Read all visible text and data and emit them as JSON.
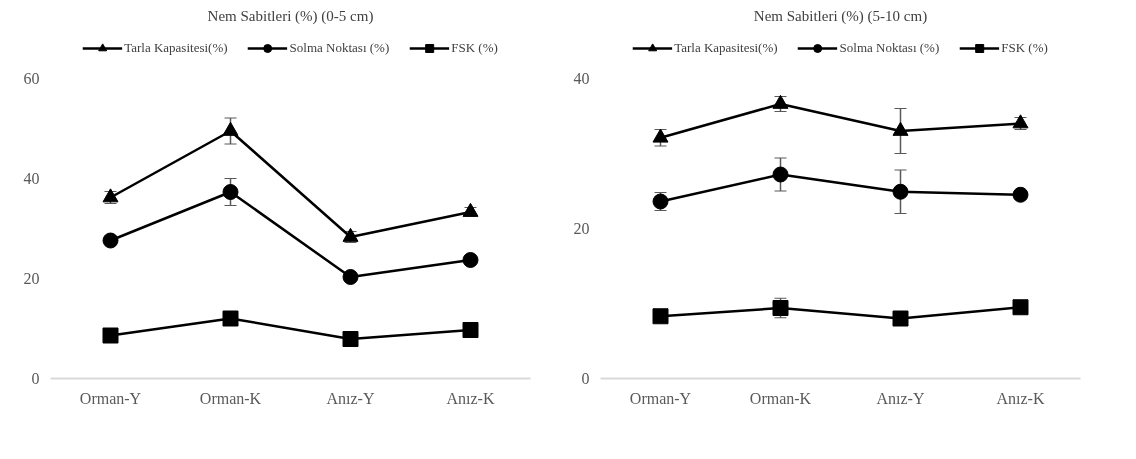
{
  "chart_data": [
    {
      "type": "line",
      "title": "Nem Sabitleri (%) (0-5 cm)",
      "categories": [
        "Orman-Y",
        "Orman-K",
        "Anız-Y",
        "Anız-K"
      ],
      "ylim": [
        0,
        60
      ],
      "yticks": [
        0,
        20,
        40,
        60
      ],
      "grid": false,
      "legend": "top",
      "line_style": "solid",
      "series": [
        {
          "name": "Tarla Kapasitesi(%)",
          "color": "#000000",
          "marker": "triangle",
          "values": [
            36.2,
            49.5,
            28.3,
            33.3
          ],
          "errors": [
            1.2,
            2.6,
            1.1,
            0.9
          ]
        },
        {
          "name": "Solma Noktası (%)",
          "color": "#000000",
          "marker": "circle",
          "values": [
            27.6,
            37.3,
            20.3,
            23.7
          ],
          "errors": [
            null,
            2.7,
            null,
            null
          ]
        },
        {
          "name": "FSK (%)",
          "color": "#000000",
          "marker": "square",
          "values": [
            8.6,
            12.0,
            7.9,
            9.7
          ]
        }
      ]
    },
    {
      "type": "line",
      "title": "Nem Sabitleri (%) (5-10 cm)",
      "categories": [
        "Orman-Y",
        "Orman-K",
        "Anız-Y",
        "Anız-K"
      ],
      "ylim": [
        0,
        40
      ],
      "yticks": [
        0,
        20,
        40
      ],
      "grid": false,
      "legend": "top",
      "line_style": "solid",
      "series": [
        {
          "name": "Tarla Kapasitesi(%)",
          "color": "#000000",
          "marker": "triangle",
          "values": [
            32.1,
            36.6,
            33.0,
            34.0
          ],
          "errors": [
            1.1,
            1.0,
            3.0,
            0.8
          ]
        },
        {
          "name": "Solma Noktası (%)",
          "color": "#000000",
          "marker": "circle",
          "values": [
            23.6,
            27.2,
            24.9,
            24.5
          ],
          "errors": [
            1.2,
            2.2,
            2.9,
            null
          ]
        },
        {
          "name": "FSK (%)",
          "color": "#000000",
          "marker": "square",
          "values": [
            8.3,
            9.4,
            8.0,
            9.5
          ],
          "errors": [
            null,
            1.3,
            null,
            null
          ]
        }
      ]
    }
  ]
}
